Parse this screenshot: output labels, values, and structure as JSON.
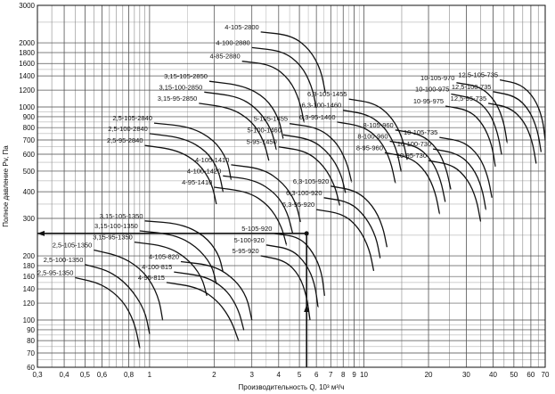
{
  "chart_data": {
    "type": "line",
    "title": "",
    "xlabel": "Производительность Q, 10³ м³/ч",
    "ylabel": "Полное давление Pv, Па",
    "x_scale": "log",
    "y_scale": "log",
    "xlim": [
      0.3,
      70
    ],
    "ylim": [
      60,
      3000
    ],
    "x_ticks": [
      "0,3",
      "0,4",
      "0,5",
      "0,6",
      "0,8",
      "1",
      "2",
      "3",
      "4",
      "5",
      "6",
      "7",
      "8",
      "9",
      "10",
      "20",
      "30",
      "40",
      "50",
      "60",
      "70"
    ],
    "y_ticks": [
      "60",
      "70",
      "80",
      "90",
      "100",
      "120",
      "140",
      "160",
      "180",
      "200",
      "300",
      "400",
      "500",
      "600",
      "700",
      "800",
      "900",
      "1000",
      "1200",
      "1400",
      "1600",
      "1800",
      "2000",
      "3000"
    ],
    "grid": true,
    "operating_point": {
      "x": 5.4,
      "y": 255
    },
    "series": [
      {
        "name": "2,5-95-1350",
        "points": [
          [
            0.45,
            158
          ],
          [
            0.6,
            148
          ],
          [
            0.75,
            124
          ],
          [
            0.85,
            98
          ],
          [
            0.9,
            74
          ]
        ]
      },
      {
        "name": "2,5-100-1350",
        "points": [
          [
            0.5,
            182
          ],
          [
            0.65,
            170
          ],
          [
            0.8,
            145
          ],
          [
            0.95,
            112
          ],
          [
            1.0,
            86
          ]
        ]
      },
      {
        "name": "2,5-105-1350",
        "points": [
          [
            0.55,
            213
          ],
          [
            0.75,
            198
          ],
          [
            0.95,
            168
          ],
          [
            1.1,
            130
          ],
          [
            1.15,
            100
          ]
        ]
      },
      {
        "name": "3,15-95-1350",
        "points": [
          [
            0.85,
            232
          ],
          [
            1.2,
            222
          ],
          [
            1.5,
            195
          ],
          [
            1.75,
            160
          ],
          [
            1.85,
            130
          ]
        ]
      },
      {
        "name": "3,15-100-1350",
        "points": [
          [
            0.9,
            262
          ],
          [
            1.3,
            252
          ],
          [
            1.65,
            222
          ],
          [
            1.95,
            182
          ],
          [
            2.05,
            148
          ]
        ]
      },
      {
        "name": "3,15-105-1350",
        "points": [
          [
            0.95,
            292
          ],
          [
            1.4,
            283
          ],
          [
            1.8,
            250
          ],
          [
            2.1,
            205
          ],
          [
            2.2,
            168
          ]
        ]
      },
      {
        "name": "4-95-815",
        "points": [
          [
            1.2,
            150
          ],
          [
            1.7,
            142
          ],
          [
            2.1,
            122
          ],
          [
            2.4,
            100
          ],
          [
            2.6,
            80
          ]
        ]
      },
      {
        "name": "4-100-815",
        "points": [
          [
            1.3,
            168
          ],
          [
            1.85,
            160
          ],
          [
            2.3,
            138
          ],
          [
            2.6,
            112
          ],
          [
            2.75,
            90
          ]
        ]
      },
      {
        "name": "4-105-820",
        "points": [
          [
            1.4,
            188
          ],
          [
            2.0,
            180
          ],
          [
            2.5,
            155
          ],
          [
            2.85,
            128
          ],
          [
            3.0,
            100
          ]
        ]
      },
      {
        "name": "2,5-95-2840",
        "points": [
          [
            0.95,
            660
          ],
          [
            1.35,
            628
          ],
          [
            1.7,
            545
          ],
          [
            1.95,
            440
          ],
          [
            2.05,
            350
          ]
        ]
      },
      {
        "name": "2,5-100-2840",
        "points": [
          [
            1.0,
            750
          ],
          [
            1.45,
            715
          ],
          [
            1.85,
            620
          ],
          [
            2.1,
            505
          ],
          [
            2.2,
            400
          ]
        ]
      },
      {
        "name": "2,5-105-2840",
        "points": [
          [
            1.05,
            840
          ],
          [
            1.55,
            808
          ],
          [
            2.0,
            700
          ],
          [
            2.3,
            570
          ],
          [
            2.4,
            455
          ]
        ]
      },
      {
        "name": "3,15-95-2850",
        "points": [
          [
            1.7,
            1040
          ],
          [
            2.4,
            990
          ],
          [
            3.0,
            860
          ],
          [
            3.4,
            700
          ],
          [
            3.6,
            560
          ]
        ]
      },
      {
        "name": "3,15-100-2850",
        "points": [
          [
            1.8,
            1175
          ],
          [
            2.6,
            1120
          ],
          [
            3.2,
            975
          ],
          [
            3.7,
            790
          ],
          [
            3.9,
            630
          ]
        ]
      },
      {
        "name": "3,15-105-2850",
        "points": [
          [
            1.9,
            1320
          ],
          [
            2.75,
            1260
          ],
          [
            3.5,
            1100
          ],
          [
            4.0,
            890
          ],
          [
            4.2,
            710
          ]
        ]
      },
      {
        "name": "4-95-1410",
        "points": [
          [
            2.0,
            420
          ],
          [
            2.9,
            400
          ],
          [
            3.6,
            345
          ],
          [
            4.1,
            280
          ],
          [
            4.35,
            225
          ]
        ]
      },
      {
        "name": "4-100-1420",
        "points": [
          [
            2.2,
            475
          ],
          [
            3.1,
            455
          ],
          [
            3.9,
            392
          ],
          [
            4.4,
            320
          ],
          [
            4.65,
            255
          ]
        ]
      },
      {
        "name": "4-105-1410",
        "points": [
          [
            2.4,
            535
          ],
          [
            3.4,
            512
          ],
          [
            4.2,
            440
          ],
          [
            4.8,
            360
          ],
          [
            5.05,
            290
          ]
        ]
      },
      {
        "name": "5-95-920",
        "points": [
          [
            3.3,
            200
          ],
          [
            4.3,
            190
          ],
          [
            5.0,
            162
          ],
          [
            5.4,
            130
          ],
          [
            5.6,
            100
          ]
        ]
      },
      {
        "name": "5-100-920",
        "points": [
          [
            3.5,
            225
          ],
          [
            4.6,
            215
          ],
          [
            5.4,
            183
          ],
          [
            5.9,
            148
          ],
          [
            6.1,
            115
          ]
        ]
      },
      {
        "name": "5-105-920",
        "points": [
          [
            3.8,
            255
          ],
          [
            5.0,
            245
          ],
          [
            5.8,
            208
          ],
          [
            6.35,
            168
          ],
          [
            6.55,
            130
          ]
        ]
      },
      {
        "name": "4-85-2880",
        "points": [
          [
            2.7,
            1640
          ],
          [
            3.7,
            1580
          ],
          [
            4.5,
            1350
          ],
          [
            5.0,
            1080
          ],
          [
            5.25,
            850
          ]
        ]
      },
      {
        "name": "4-100-2880",
        "points": [
          [
            3.0,
            1900
          ],
          [
            4.2,
            1830
          ],
          [
            5.1,
            1570
          ],
          [
            5.7,
            1260
          ],
          [
            6.0,
            990
          ]
        ]
      },
      {
        "name": "4-105-2800",
        "points": [
          [
            3.3,
            2250
          ],
          [
            4.6,
            2170
          ],
          [
            5.6,
            1860
          ],
          [
            6.3,
            1490
          ],
          [
            6.6,
            1170
          ]
        ]
      },
      {
        "name": "5-95-1450",
        "points": [
          [
            4.0,
            650
          ],
          [
            5.4,
            620
          ],
          [
            6.5,
            530
          ],
          [
            7.3,
            430
          ],
          [
            7.7,
            345
          ]
        ]
      },
      {
        "name": "5-100-1460",
        "points": [
          [
            4.2,
            740
          ],
          [
            5.7,
            705
          ],
          [
            6.9,
            605
          ],
          [
            7.8,
            490
          ],
          [
            8.2,
            395
          ]
        ]
      },
      {
        "name": "5-105-1455",
        "points": [
          [
            4.5,
            835
          ],
          [
            6.1,
            800
          ],
          [
            7.4,
            690
          ],
          [
            8.3,
            555
          ],
          [
            8.75,
            445
          ]
        ]
      },
      {
        "name": "6,3-95-920",
        "points": [
          [
            6.0,
            330
          ],
          [
            8.0,
            315
          ],
          [
            9.5,
            270
          ],
          [
            10.6,
            215
          ],
          [
            11.1,
            170
          ]
        ]
      },
      {
        "name": "6,3-100-920",
        "points": [
          [
            6.5,
            375
          ],
          [
            8.6,
            358
          ],
          [
            10.2,
            305
          ],
          [
            11.4,
            245
          ],
          [
            11.9,
            195
          ]
        ]
      },
      {
        "name": "6,3-105-920",
        "points": [
          [
            7.0,
            425
          ],
          [
            9.2,
            405
          ],
          [
            11.0,
            345
          ],
          [
            12.2,
            278
          ],
          [
            12.8,
            220
          ]
        ]
      },
      {
        "name": "6,3-95-1460",
        "points": [
          [
            7.5,
            850
          ],
          [
            10.0,
            810
          ],
          [
            12.0,
            695
          ],
          [
            13.3,
            560
          ],
          [
            14.0,
            440
          ]
        ]
      },
      {
        "name": "6,3-100-1460",
        "points": [
          [
            8.0,
            965
          ],
          [
            10.6,
            920
          ],
          [
            12.7,
            790
          ],
          [
            14.2,
            635
          ],
          [
            14.9,
            500
          ]
        ]
      },
      {
        "name": "6,3-105-1455",
        "points": [
          [
            8.5,
            1090
          ],
          [
            11.3,
            1040
          ],
          [
            13.5,
            895
          ],
          [
            15.1,
            720
          ],
          [
            15.9,
            565
          ]
        ]
      },
      {
        "name": "8-95-960",
        "points": [
          [
            12.5,
            610
          ],
          [
            16.5,
            580
          ],
          [
            19.5,
            498
          ],
          [
            21.5,
            400
          ],
          [
            22.5,
            315
          ]
        ]
      },
      {
        "name": "8-100-960",
        "points": [
          [
            13.2,
            690
          ],
          [
            17.5,
            660
          ],
          [
            20.7,
            565
          ],
          [
            22.8,
            455
          ],
          [
            23.9,
            360
          ]
        ]
      },
      {
        "name": "8-105-960",
        "points": [
          [
            14.0,
            780
          ],
          [
            18.5,
            745
          ],
          [
            22.0,
            640
          ],
          [
            24.2,
            515
          ],
          [
            25.4,
            410
          ]
        ]
      },
      {
        "name": "10-95-730",
        "points": [
          [
            20.0,
            560
          ],
          [
            26.0,
            535
          ],
          [
            30.5,
            458
          ],
          [
            33.5,
            368
          ],
          [
            35.0,
            290
          ]
        ]
      },
      {
        "name": "10-100-730",
        "points": [
          [
            21.0,
            635
          ],
          [
            27.5,
            605
          ],
          [
            32.3,
            520
          ],
          [
            35.5,
            418
          ],
          [
            37.0,
            330
          ]
        ]
      },
      {
        "name": "10-105-735",
        "points": [
          [
            22.5,
            720
          ],
          [
            29.3,
            688
          ],
          [
            34.5,
            590
          ],
          [
            37.8,
            475
          ],
          [
            39.5,
            375
          ]
        ]
      },
      {
        "name": "10-95-975",
        "points": [
          [
            24.0,
            1010
          ],
          [
            31.0,
            965
          ],
          [
            36.0,
            830
          ],
          [
            39.5,
            665
          ],
          [
            41.0,
            525
          ]
        ]
      },
      {
        "name": "10-100-975",
        "points": [
          [
            25.5,
            1150
          ],
          [
            33.0,
            1095
          ],
          [
            38.5,
            945
          ],
          [
            42.0,
            760
          ],
          [
            43.8,
            600
          ]
        ]
      },
      {
        "name": "10-105-970",
        "points": [
          [
            27.0,
            1300
          ],
          [
            35.0,
            1245
          ],
          [
            41.0,
            1070
          ],
          [
            44.8,
            860
          ],
          [
            46.5,
            680
          ]
        ]
      },
      {
        "name": "12,5-95-735",
        "points": [
          [
            38.0,
            1040
          ],
          [
            48.0,
            995
          ],
          [
            56.0,
            855
          ],
          [
            61.0,
            690
          ],
          [
            63.5,
            545
          ]
        ]
      },
      {
        "name": "12,5-100-735",
        "points": [
          [
            40.0,
            1180
          ],
          [
            51.0,
            1125
          ],
          [
            59.0,
            970
          ],
          [
            64.5,
            780
          ],
          [
            67.0,
            615
          ]
        ]
      },
      {
        "name": "12,5-105-735",
        "points": [
          [
            43.0,
            1340
          ],
          [
            54.0,
            1280
          ],
          [
            62.5,
            1100
          ],
          [
            68.0,
            885
          ],
          [
            70.0,
            700
          ]
        ]
      }
    ]
  }
}
